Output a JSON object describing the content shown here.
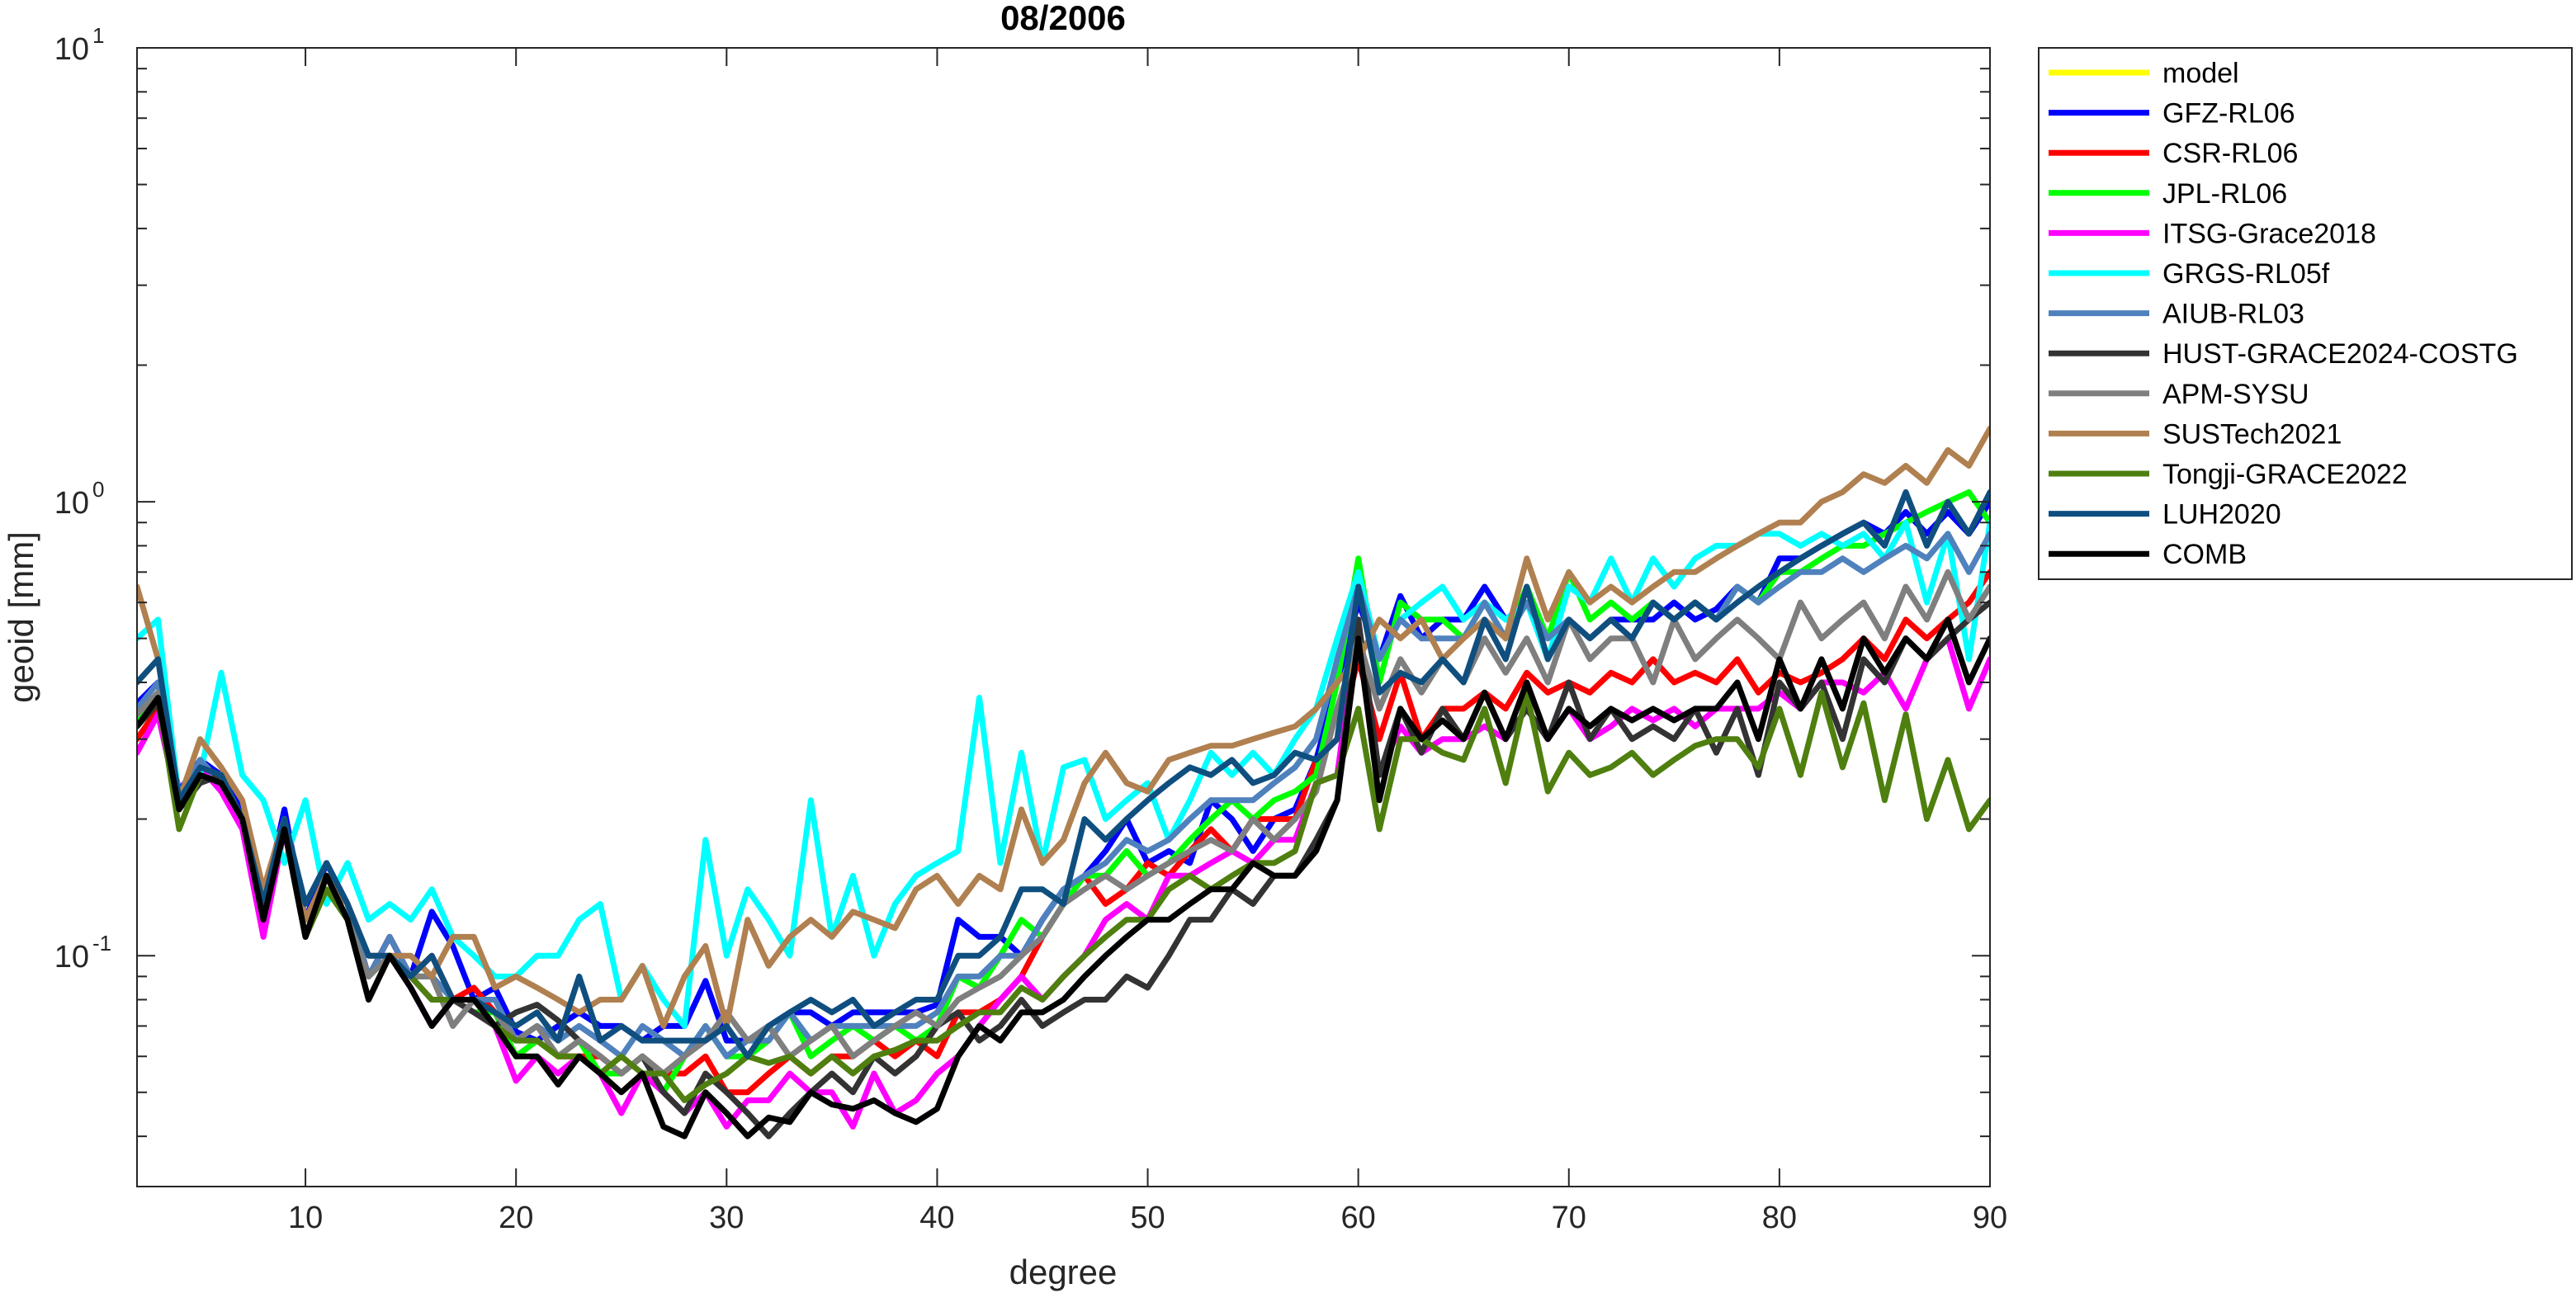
{
  "chart_data": {
    "type": "line",
    "title": "08/2006",
    "xlabel": "degree",
    "ylabel": "geoid [mm]",
    "yscale": "log",
    "xlim": [
      2,
      90
    ],
    "ylim": [
      0.031,
      10
    ],
    "x_ticks": [
      "10",
      "20",
      "30",
      "40",
      "50",
      "60",
      "70",
      "80",
      "90"
    ],
    "y_ticks": [
      {
        "base": "10",
        "exp": "-1",
        "value": 0.1
      },
      {
        "base": "10",
        "exp": "0",
        "value": 1
      },
      {
        "base": "10",
        "exp": "1",
        "value": 10
      }
    ],
    "grid": false,
    "legend_position": "outside-right",
    "x_start": 2,
    "series": [
      {
        "name": "model",
        "color": "#ffff00",
        "values": []
      },
      {
        "name": "GFZ-RL06",
        "color": "#0000ff",
        "values": [
          0.36,
          0.4,
          0.23,
          0.27,
          0.25,
          0.21,
          0.13,
          0.21,
          0.12,
          0.16,
          0.13,
          0.09,
          0.11,
          0.09,
          0.125,
          0.105,
          0.08,
          0.085,
          0.068,
          0.065,
          0.07,
          0.075,
          0.07,
          0.07,
          0.065,
          0.07,
          0.07,
          0.088,
          0.065,
          0.065,
          0.07,
          0.075,
          0.075,
          0.07,
          0.075,
          0.075,
          0.075,
          0.075,
          0.078,
          0.12,
          0.11,
          0.11,
          0.1,
          0.12,
          0.14,
          0.15,
          0.17,
          0.2,
          0.16,
          0.17,
          0.16,
          0.22,
          0.2,
          0.17,
          0.2,
          0.21,
          0.27,
          0.4,
          0.6,
          0.45,
          0.62,
          0.5,
          0.55,
          0.55,
          0.65,
          0.55,
          0.6,
          0.5,
          0.55,
          0.5,
          0.55,
          0.55,
          0.55,
          0.6,
          0.55,
          0.58,
          0.65,
          0.6,
          0.75,
          0.75,
          0.8,
          0.85,
          0.9,
          0.85,
          0.95,
          0.85,
          0.95,
          0.85,
          1.0
        ]
      },
      {
        "name": "CSR-RL06",
        "color": "#ff0000",
        "values": [
          0.3,
          0.35,
          0.21,
          0.27,
          0.23,
          0.2,
          0.13,
          0.19,
          0.11,
          0.15,
          0.12,
          0.09,
          0.11,
          0.09,
          0.1,
          0.08,
          0.085,
          0.075,
          0.06,
          0.065,
          0.06,
          0.06,
          0.06,
          0.055,
          0.06,
          0.055,
          0.055,
          0.06,
          0.05,
          0.05,
          0.055,
          0.06,
          0.055,
          0.06,
          0.06,
          0.065,
          0.06,
          0.065,
          0.06,
          0.075,
          0.075,
          0.08,
          0.09,
          0.11,
          0.13,
          0.15,
          0.13,
          0.14,
          0.16,
          0.15,
          0.17,
          0.19,
          0.17,
          0.2,
          0.2,
          0.2,
          0.27,
          0.3,
          0.45,
          0.3,
          0.42,
          0.3,
          0.35,
          0.35,
          0.38,
          0.35,
          0.42,
          0.38,
          0.4,
          0.38,
          0.42,
          0.4,
          0.45,
          0.4,
          0.42,
          0.4,
          0.45,
          0.38,
          0.42,
          0.4,
          0.42,
          0.45,
          0.5,
          0.45,
          0.55,
          0.5,
          0.55,
          0.6,
          0.7
        ]
      },
      {
        "name": "JPL-RL06",
        "color": "#00ff00",
        "values": [
          0.33,
          0.38,
          0.21,
          0.27,
          0.24,
          0.2,
          0.12,
          0.2,
          0.11,
          0.15,
          0.12,
          0.09,
          0.1,
          0.09,
          0.09,
          0.08,
          0.075,
          0.075,
          0.06,
          0.065,
          0.06,
          0.065,
          0.055,
          0.055,
          0.06,
          0.05,
          0.06,
          0.07,
          0.06,
          0.06,
          0.065,
          0.075,
          0.06,
          0.065,
          0.07,
          0.065,
          0.07,
          0.065,
          0.07,
          0.09,
          0.085,
          0.1,
          0.12,
          0.11,
          0.13,
          0.15,
          0.15,
          0.17,
          0.15,
          0.16,
          0.18,
          0.2,
          0.22,
          0.2,
          0.22,
          0.23,
          0.25,
          0.4,
          0.75,
          0.4,
          0.6,
          0.55,
          0.55,
          0.5,
          0.6,
          0.5,
          0.65,
          0.5,
          0.7,
          0.55,
          0.6,
          0.55,
          0.6,
          0.55,
          0.6,
          0.55,
          0.65,
          0.6,
          0.7,
          0.7,
          0.75,
          0.8,
          0.8,
          0.85,
          0.9,
          0.95,
          1.0,
          1.05,
          0.9
        ]
      },
      {
        "name": "ITSG-Grace2018",
        "color": "#ff00ff",
        "values": [
          0.28,
          0.34,
          0.21,
          0.26,
          0.23,
          0.19,
          0.11,
          0.19,
          0.11,
          0.15,
          0.12,
          0.08,
          0.1,
          0.085,
          0.07,
          0.08,
          0.075,
          0.07,
          0.053,
          0.06,
          0.055,
          0.06,
          0.055,
          0.045,
          0.055,
          0.05,
          0.045,
          0.05,
          0.042,
          0.048,
          0.048,
          0.055,
          0.05,
          0.05,
          0.042,
          0.055,
          0.045,
          0.048,
          0.055,
          0.06,
          0.07,
          0.08,
          0.09,
          0.08,
          0.09,
          0.1,
          0.12,
          0.13,
          0.12,
          0.15,
          0.15,
          0.16,
          0.17,
          0.16,
          0.18,
          0.18,
          0.24,
          0.25,
          0.55,
          0.25,
          0.32,
          0.28,
          0.3,
          0.3,
          0.32,
          0.3,
          0.35,
          0.3,
          0.35,
          0.3,
          0.32,
          0.35,
          0.33,
          0.35,
          0.32,
          0.35,
          0.35,
          0.35,
          0.38,
          0.35,
          0.4,
          0.4,
          0.38,
          0.42,
          0.35,
          0.45,
          0.5,
          0.35,
          0.45
        ]
      },
      {
        "name": "GRGS-RL05f",
        "color": "#00ffff",
        "values": [
          0.5,
          0.55,
          0.22,
          0.25,
          0.42,
          0.25,
          0.22,
          0.16,
          0.22,
          0.13,
          0.16,
          0.12,
          0.13,
          0.12,
          0.14,
          0.11,
          0.1,
          0.09,
          0.09,
          0.1,
          0.1,
          0.12,
          0.13,
          0.08,
          0.095,
          0.08,
          0.07,
          0.18,
          0.1,
          0.14,
          0.12,
          0.1,
          0.22,
          0.11,
          0.15,
          0.1,
          0.13,
          0.15,
          0.16,
          0.17,
          0.37,
          0.16,
          0.28,
          0.16,
          0.26,
          0.27,
          0.2,
          0.22,
          0.24,
          0.18,
          0.22,
          0.28,
          0.25,
          0.28,
          0.25,
          0.3,
          0.35,
          0.5,
          0.7,
          0.45,
          0.55,
          0.6,
          0.65,
          0.55,
          0.6,
          0.55,
          0.6,
          0.45,
          0.65,
          0.6,
          0.75,
          0.6,
          0.75,
          0.65,
          0.75,
          0.8,
          0.8,
          0.85,
          0.85,
          0.8,
          0.85,
          0.8,
          0.85,
          0.75,
          0.9,
          0.6,
          0.85,
          0.45,
          0.9
        ]
      },
      {
        "name": "AIUB-RL03",
        "color": "#4f81bd",
        "values": [
          0.35,
          0.4,
          0.22,
          0.27,
          0.24,
          0.2,
          0.13,
          0.2,
          0.12,
          0.15,
          0.13,
          0.09,
          0.11,
          0.09,
          0.09,
          0.08,
          0.08,
          0.08,
          0.065,
          0.07,
          0.065,
          0.07,
          0.065,
          0.06,
          0.07,
          0.065,
          0.06,
          0.07,
          0.06,
          0.065,
          0.065,
          0.075,
          0.065,
          0.07,
          0.07,
          0.07,
          0.07,
          0.07,
          0.075,
          0.09,
          0.09,
          0.1,
          0.1,
          0.12,
          0.14,
          0.15,
          0.16,
          0.18,
          0.17,
          0.18,
          0.2,
          0.22,
          0.22,
          0.22,
          0.24,
          0.26,
          0.3,
          0.45,
          0.65,
          0.45,
          0.55,
          0.5,
          0.5,
          0.5,
          0.6,
          0.5,
          0.6,
          0.5,
          0.55,
          0.5,
          0.55,
          0.5,
          0.6,
          0.55,
          0.6,
          0.55,
          0.65,
          0.6,
          0.65,
          0.7,
          0.7,
          0.75,
          0.7,
          0.75,
          0.8,
          0.75,
          0.85,
          0.7,
          0.85
        ]
      },
      {
        "name": "HUST-GRACE2024-COSTG",
        "color": "#333333",
        "values": [
          0.32,
          0.36,
          0.21,
          0.24,
          0.25,
          0.2,
          0.13,
          0.19,
          0.11,
          0.15,
          0.12,
          0.08,
          0.1,
          0.09,
          0.08,
          0.08,
          0.075,
          0.07,
          0.075,
          0.078,
          0.072,
          0.065,
          0.06,
          0.055,
          0.06,
          0.05,
          0.045,
          0.055,
          0.05,
          0.045,
          0.04,
          0.045,
          0.05,
          0.055,
          0.05,
          0.06,
          0.055,
          0.06,
          0.07,
          0.075,
          0.065,
          0.07,
          0.08,
          0.07,
          0.075,
          0.08,
          0.08,
          0.09,
          0.085,
          0.1,
          0.12,
          0.12,
          0.14,
          0.13,
          0.15,
          0.15,
          0.18,
          0.22,
          0.55,
          0.25,
          0.35,
          0.28,
          0.35,
          0.3,
          0.38,
          0.3,
          0.35,
          0.3,
          0.4,
          0.3,
          0.35,
          0.3,
          0.32,
          0.3,
          0.35,
          0.28,
          0.35,
          0.25,
          0.4,
          0.35,
          0.4,
          0.3,
          0.45,
          0.4,
          0.5,
          0.45,
          0.5,
          0.55,
          0.6
        ]
      },
      {
        "name": "APM-SYSU",
        "color": "#7f7f7f",
        "values": [
          0.34,
          0.38,
          0.22,
          0.26,
          0.25,
          0.2,
          0.13,
          0.2,
          0.12,
          0.15,
          0.12,
          0.09,
          0.1,
          0.09,
          0.09,
          0.07,
          0.08,
          0.075,
          0.065,
          0.07,
          0.06,
          0.065,
          0.06,
          0.055,
          0.06,
          0.055,
          0.06,
          0.065,
          0.075,
          0.065,
          0.07,
          0.06,
          0.065,
          0.07,
          0.06,
          0.065,
          0.07,
          0.075,
          0.07,
          0.08,
          0.085,
          0.09,
          0.1,
          0.11,
          0.13,
          0.14,
          0.15,
          0.14,
          0.15,
          0.16,
          0.17,
          0.18,
          0.17,
          0.2,
          0.18,
          0.2,
          0.23,
          0.35,
          0.5,
          0.35,
          0.45,
          0.38,
          0.45,
          0.4,
          0.5,
          0.42,
          0.5,
          0.4,
          0.55,
          0.45,
          0.5,
          0.5,
          0.4,
          0.55,
          0.45,
          0.5,
          0.55,
          0.5,
          0.45,
          0.6,
          0.5,
          0.55,
          0.6,
          0.5,
          0.65,
          0.55,
          0.7,
          0.55,
          0.65
        ]
      },
      {
        "name": "SUSTech2021",
        "color": "#b08050",
        "values": [
          0.65,
          0.45,
          0.22,
          0.3,
          0.26,
          0.22,
          0.14,
          0.2,
          0.12,
          0.15,
          0.13,
          0.1,
          0.1,
          0.1,
          0.09,
          0.11,
          0.11,
          0.085,
          0.09,
          0.085,
          0.08,
          0.075,
          0.08,
          0.08,
          0.095,
          0.07,
          0.09,
          0.105,
          0.07,
          0.12,
          0.095,
          0.11,
          0.12,
          0.11,
          0.125,
          0.12,
          0.115,
          0.14,
          0.15,
          0.13,
          0.15,
          0.14,
          0.21,
          0.16,
          0.18,
          0.24,
          0.28,
          0.24,
          0.23,
          0.27,
          0.28,
          0.29,
          0.29,
          0.3,
          0.31,
          0.32,
          0.35,
          0.4,
          0.45,
          0.55,
          0.5,
          0.55,
          0.45,
          0.5,
          0.55,
          0.5,
          0.75,
          0.55,
          0.7,
          0.6,
          0.65,
          0.6,
          0.65,
          0.7,
          0.7,
          0.75,
          0.8,
          0.85,
          0.9,
          0.9,
          1.0,
          1.05,
          1.15,
          1.1,
          1.2,
          1.1,
          1.3,
          1.2,
          1.45
        ]
      },
      {
        "name": "Tongji-GRACE2022",
        "color": "#4f7f0f",
        "values": [
          0.32,
          0.37,
          0.19,
          0.25,
          0.24,
          0.2,
          0.12,
          0.19,
          0.11,
          0.14,
          0.12,
          0.08,
          0.1,
          0.09,
          0.08,
          0.08,
          0.08,
          0.07,
          0.065,
          0.065,
          0.06,
          0.06,
          0.055,
          0.06,
          0.055,
          0.055,
          0.048,
          0.052,
          0.055,
          0.06,
          0.058,
          0.06,
          0.055,
          0.06,
          0.055,
          0.06,
          0.062,
          0.065,
          0.065,
          0.07,
          0.075,
          0.075,
          0.085,
          0.08,
          0.09,
          0.1,
          0.11,
          0.12,
          0.12,
          0.14,
          0.15,
          0.14,
          0.15,
          0.16,
          0.16,
          0.17,
          0.24,
          0.25,
          0.35,
          0.19,
          0.3,
          0.3,
          0.28,
          0.27,
          0.35,
          0.24,
          0.38,
          0.23,
          0.28,
          0.25,
          0.26,
          0.28,
          0.25,
          0.27,
          0.29,
          0.3,
          0.3,
          0.26,
          0.35,
          0.25,
          0.38,
          0.26,
          0.36,
          0.22,
          0.34,
          0.2,
          0.27,
          0.19,
          0.22
        ]
      },
      {
        "name": "LUH2020",
        "color": "#0f4f7f",
        "values": [
          0.4,
          0.45,
          0.22,
          0.26,
          0.25,
          0.2,
          0.13,
          0.2,
          0.13,
          0.16,
          0.13,
          0.1,
          0.1,
          0.09,
          0.1,
          0.08,
          0.08,
          0.075,
          0.07,
          0.075,
          0.065,
          0.09,
          0.065,
          0.07,
          0.065,
          0.065,
          0.065,
          0.065,
          0.07,
          0.06,
          0.07,
          0.075,
          0.08,
          0.075,
          0.08,
          0.07,
          0.075,
          0.08,
          0.08,
          0.1,
          0.1,
          0.11,
          0.14,
          0.14,
          0.13,
          0.2,
          0.18,
          0.2,
          0.22,
          0.24,
          0.26,
          0.25,
          0.27,
          0.24,
          0.25,
          0.28,
          0.27,
          0.3,
          0.65,
          0.38,
          0.42,
          0.4,
          0.45,
          0.4,
          0.55,
          0.45,
          0.65,
          0.45,
          0.55,
          0.5,
          0.55,
          0.5,
          0.6,
          0.55,
          0.6,
          0.55,
          0.6,
          0.65,
          0.7,
          0.75,
          0.8,
          0.85,
          0.9,
          0.8,
          1.05,
          0.8,
          1.0,
          0.85,
          1.05
        ]
      },
      {
        "name": "COMB",
        "color": "#000000",
        "values": [
          0.32,
          0.37,
          0.21,
          0.25,
          0.24,
          0.2,
          0.12,
          0.19,
          0.11,
          0.15,
          0.12,
          0.08,
          0.1,
          0.085,
          0.07,
          0.08,
          0.08,
          0.07,
          0.06,
          0.06,
          0.052,
          0.06,
          0.055,
          0.05,
          0.055,
          0.042,
          0.04,
          0.05,
          0.045,
          0.04,
          0.044,
          0.043,
          0.05,
          0.047,
          0.046,
          0.048,
          0.045,
          0.043,
          0.046,
          0.06,
          0.07,
          0.065,
          0.075,
          0.075,
          0.08,
          0.09,
          0.1,
          0.11,
          0.12,
          0.12,
          0.13,
          0.14,
          0.14,
          0.16,
          0.15,
          0.15,
          0.17,
          0.22,
          0.5,
          0.22,
          0.35,
          0.3,
          0.33,
          0.3,
          0.38,
          0.3,
          0.4,
          0.3,
          0.35,
          0.32,
          0.35,
          0.33,
          0.35,
          0.33,
          0.35,
          0.35,
          0.4,
          0.3,
          0.45,
          0.35,
          0.45,
          0.35,
          0.5,
          0.42,
          0.5,
          0.45,
          0.55,
          0.4,
          0.5
        ]
      }
    ]
  }
}
